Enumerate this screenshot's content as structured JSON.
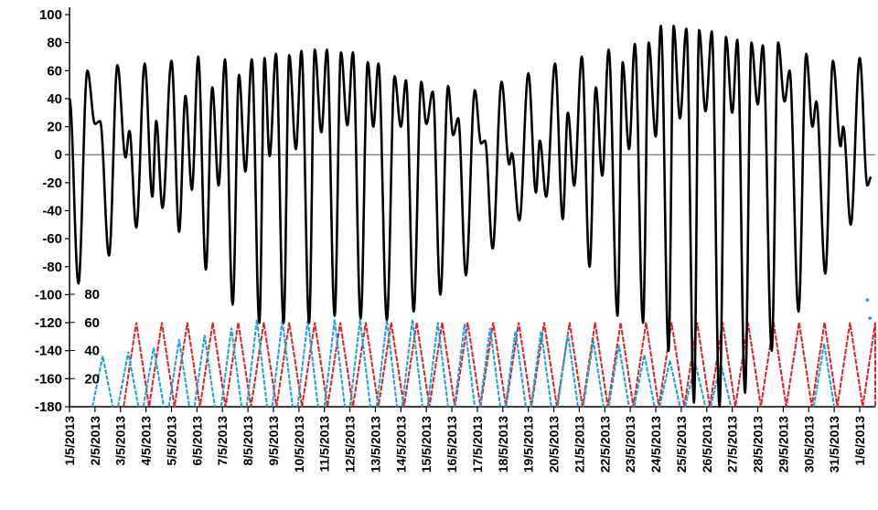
{
  "chart_data": {
    "type": "line",
    "title": "",
    "xlabel": "",
    "ylabel": "",
    "grid": false,
    "x_range": [
      "1/5/2013",
      "1/6/2013"
    ],
    "x_tick_labels": [
      "1/5/2013",
      "2/5/2013",
      "3/5/2013",
      "4/5/2013",
      "5/5/2013",
      "6/5/2013",
      "7/5/2013",
      "8/5/2013",
      "9/5/2013",
      "10/5/2013",
      "11/5/2013",
      "12/5/2013",
      "13/5/2013",
      "14/5/2013",
      "15/5/2013",
      "16/5/2013",
      "17/5/2013",
      "18/5/2013",
      "19/5/2013",
      "20/5/2013",
      "21/5/2013",
      "22/5/2013",
      "23/5/2013",
      "24/5/2013",
      "25/5/2013",
      "26/5/2013",
      "27/5/2013",
      "28/5/2013",
      "29/5/2013",
      "30/5/2013",
      "31/5/2013",
      "1/6/2013"
    ],
    "y_axis": {
      "range": [
        -180,
        100
      ],
      "ticks": [
        100,
        80,
        60,
        40,
        20,
        0,
        -20,
        -40,
        -60,
        -80,
        -100,
        -120,
        -140,
        -160,
        -180
      ]
    },
    "y2_axis": {
      "range": [
        0,
        80
      ],
      "ticks": [
        80,
        60,
        40,
        20
      ]
    },
    "series": [
      {
        "axis": "y",
        "color": "#000000",
        "style": "semi-diurnal oscillation",
        "extrema": [
          [
            1.0,
            40
          ],
          [
            1.35,
            -92
          ],
          [
            1.7,
            60
          ],
          [
            2.0,
            22
          ],
          [
            2.2,
            24
          ],
          [
            2.55,
            -72
          ],
          [
            2.88,
            64
          ],
          [
            3.2,
            -2
          ],
          [
            3.35,
            17
          ],
          [
            3.62,
            -52
          ],
          [
            3.95,
            65
          ],
          [
            4.25,
            -30
          ],
          [
            4.4,
            24
          ],
          [
            4.65,
            -38
          ],
          [
            5.0,
            67
          ],
          [
            5.3,
            -55
          ],
          [
            5.55,
            42
          ],
          [
            5.8,
            -25
          ],
          [
            6.05,
            70
          ],
          [
            6.35,
            -82
          ],
          [
            6.6,
            48
          ],
          [
            6.85,
            -22
          ],
          [
            7.1,
            68
          ],
          [
            7.4,
            -107
          ],
          [
            7.65,
            57
          ],
          [
            7.9,
            -12
          ],
          [
            8.15,
            68
          ],
          [
            8.45,
            -120
          ],
          [
            8.65,
            69
          ],
          [
            8.85,
            -1
          ],
          [
            9.1,
            72
          ],
          [
            9.4,
            -120
          ],
          [
            9.62,
            71
          ],
          [
            9.88,
            4
          ],
          [
            10.1,
            74
          ],
          [
            10.4,
            -120
          ],
          [
            10.62,
            75
          ],
          [
            10.88,
            16
          ],
          [
            11.1,
            75
          ],
          [
            11.4,
            -115
          ],
          [
            11.65,
            73
          ],
          [
            11.9,
            21
          ],
          [
            12.12,
            73
          ],
          [
            12.42,
            -117
          ],
          [
            12.7,
            66
          ],
          [
            12.92,
            20
          ],
          [
            13.12,
            65
          ],
          [
            13.45,
            -118
          ],
          [
            13.75,
            56
          ],
          [
            14.0,
            20
          ],
          [
            14.2,
            53
          ],
          [
            14.5,
            -112
          ],
          [
            14.8,
            52
          ],
          [
            15.0,
            22
          ],
          [
            15.25,
            45
          ],
          [
            15.55,
            -100
          ],
          [
            15.85,
            49
          ],
          [
            16.05,
            14
          ],
          [
            16.25,
            26
          ],
          [
            16.55,
            -86
          ],
          [
            16.9,
            46
          ],
          [
            17.15,
            8
          ],
          [
            17.3,
            10
          ],
          [
            17.6,
            -67
          ],
          [
            17.95,
            52
          ],
          [
            18.25,
            -7
          ],
          [
            18.35,
            1
          ],
          [
            18.65,
            -47
          ],
          [
            19.0,
            58
          ],
          [
            19.3,
            -27
          ],
          [
            19.45,
            10
          ],
          [
            19.7,
            -30
          ],
          [
            20.05,
            65
          ],
          [
            20.35,
            -46
          ],
          [
            20.55,
            30
          ],
          [
            20.8,
            -22
          ],
          [
            21.1,
            70
          ],
          [
            21.4,
            -80
          ],
          [
            21.65,
            48
          ],
          [
            21.9,
            -15
          ],
          [
            22.15,
            75
          ],
          [
            22.5,
            -115
          ],
          [
            22.7,
            66
          ],
          [
            22.95,
            4
          ],
          [
            23.18,
            79
          ],
          [
            23.5,
            -120
          ],
          [
            23.72,
            80
          ],
          [
            24.0,
            13
          ],
          [
            24.2,
            92
          ],
          [
            24.5,
            -140
          ],
          [
            24.7,
            92
          ],
          [
            24.95,
            26
          ],
          [
            25.2,
            90
          ],
          [
            25.5,
            -177
          ],
          [
            25.7,
            89
          ],
          [
            25.95,
            31
          ],
          [
            26.2,
            88
          ],
          [
            26.5,
            -180
          ],
          [
            26.75,
            84
          ],
          [
            27.0,
            30
          ],
          [
            27.2,
            82
          ],
          [
            27.5,
            -170
          ],
          [
            27.75,
            80
          ],
          [
            28.0,
            36
          ],
          [
            28.2,
            78
          ],
          [
            28.55,
            -140
          ],
          [
            28.8,
            80
          ],
          [
            29.05,
            38
          ],
          [
            29.25,
            60
          ],
          [
            29.6,
            -112
          ],
          [
            29.9,
            72
          ],
          [
            30.15,
            20
          ],
          [
            30.3,
            38
          ],
          [
            30.65,
            -85
          ],
          [
            30.95,
            67
          ],
          [
            31.25,
            6
          ],
          [
            31.35,
            20
          ],
          [
            31.65,
            -50
          ],
          [
            32.0,
            69
          ],
          [
            32.3,
            -22
          ],
          [
            32.45,
            -16
          ]
        ]
      },
      {
        "axis": "y2",
        "color": "#d62728",
        "style": "triangle wave",
        "peak_value": 60,
        "peaks_at_day": [
          3.62,
          4.62,
          5.62,
          6.62,
          7.62,
          8.62,
          9.62,
          10.62,
          11.62,
          12.62,
          13.62,
          14.62,
          15.62,
          16.62,
          17.62,
          18.62,
          19.62,
          20.62,
          21.62,
          22.62,
          23.62,
          24.62,
          25.62,
          26.62,
          27.62,
          28.62,
          29.62,
          30.62,
          31.62,
          32.62,
          33.62
        ]
      },
      {
        "axis": "y2",
        "color": "#1ea0d8",
        "style": "triangle wave",
        "peaks": [
          [
            2.3,
            36
          ],
          [
            3.3,
            39
          ],
          [
            4.3,
            42
          ],
          [
            5.3,
            48
          ],
          [
            6.3,
            51
          ],
          [
            7.35,
            56
          ],
          [
            8.35,
            62
          ],
          [
            9.35,
            62
          ],
          [
            10.35,
            62
          ],
          [
            11.4,
            62
          ],
          [
            12.4,
            62
          ],
          [
            13.45,
            62
          ],
          [
            14.45,
            62
          ],
          [
            15.45,
            60
          ],
          [
            16.5,
            59
          ],
          [
            17.5,
            56
          ],
          [
            18.5,
            54
          ],
          [
            19.5,
            54
          ],
          [
            20.55,
            52
          ],
          [
            21.55,
            47
          ],
          [
            22.55,
            44
          ],
          [
            23.55,
            37
          ],
          [
            24.55,
            33
          ],
          [
            25.55,
            31
          ],
          [
            26.55,
            31
          ],
          [
            30.6,
            45
          ]
        ],
        "extra_points": [
          [
            32.3,
            76
          ],
          [
            32.4,
            63
          ]
        ]
      }
    ]
  }
}
